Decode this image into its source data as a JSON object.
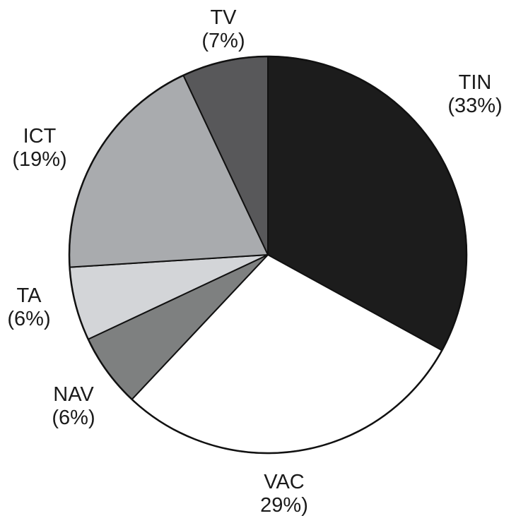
{
  "chart_data": {
    "type": "pie",
    "start": "top",
    "direction": "clockwise",
    "slices": [
      {
        "name": "TIN",
        "value": 33,
        "pct_label": "(33%)",
        "color": "#1c1c1c"
      },
      {
        "name": "VAC",
        "value": 29,
        "pct_label": "29%)",
        "color": "#ffffff"
      },
      {
        "name": "NAV",
        "value": 6,
        "pct_label": "(6%)",
        "color": "#7e8080"
      },
      {
        "name": "TA",
        "value": 6,
        "pct_label": "(6%)",
        "color": "#d3d5d8"
      },
      {
        "name": "ICT",
        "value": 19,
        "pct_label": "(19%)",
        "color": "#a9abae"
      },
      {
        "name": "TV",
        "value": 7,
        "pct_label": "(7%)",
        "color": "#58585a"
      }
    ]
  }
}
